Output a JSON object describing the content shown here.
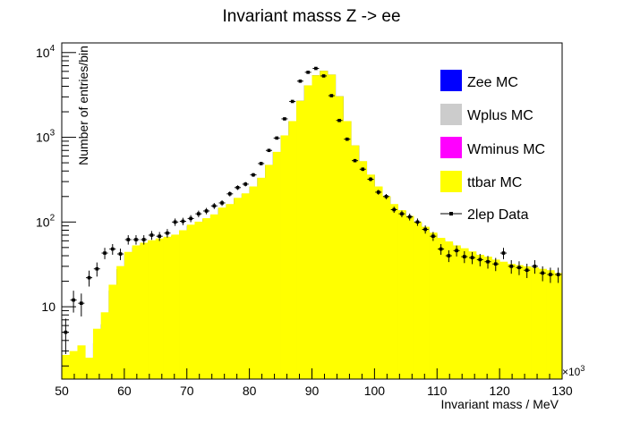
{
  "chart_data": {
    "type": "bar",
    "title": "Invariant masss Z -> ee",
    "xlabel": "Invariant mass / MeV",
    "ylabel": "Number of entries/bin",
    "x_multiplier": "×10",
    "x_multiplier_exp": "3",
    "xlim": [
      50000,
      130000
    ],
    "ylim_log": [
      1.4,
      13000
    ],
    "y_scale": "log",
    "bin_width": 1250,
    "x_ticks": [
      {
        "label": "50",
        "value": 50000
      },
      {
        "label": "60",
        "value": 60000
      },
      {
        "label": "70",
        "value": 70000
      },
      {
        "label": "80",
        "value": 80000
      },
      {
        "label": "90",
        "value": 90000
      },
      {
        "label": "100",
        "value": 100000
      },
      {
        "label": "110",
        "value": 110000
      },
      {
        "label": "120",
        "value": 120000
      },
      {
        "label": "130",
        "value": 130000
      }
    ],
    "y_ticks": [
      {
        "label": "10",
        "exp": "",
        "value": 10
      },
      {
        "label": "10",
        "exp": "2",
        "value": 100
      },
      {
        "label": "10",
        "exp": "3",
        "value": 1000
      },
      {
        "label": "10",
        "exp": "4",
        "value": 10000
      }
    ],
    "colors": {
      "zee": "#0000ff",
      "ttbar": "#ffff00",
      "wplus": "#cccccc",
      "wminus": "#ff00ff",
      "data": "#000000"
    },
    "series": [
      {
        "name": "Zee MC",
        "values": [
          0.4,
          0.6,
          0.9,
          0.8,
          3.7,
          6.2,
          15.5,
          27.8,
          42,
          50,
          54,
          58,
          61,
          64,
          68,
          77,
          90,
          98,
          108,
          120,
          145,
          160,
          190,
          215,
          260,
          330,
          470,
          670,
          1050,
          1550,
          2700,
          4100,
          5400,
          6100,
          5500,
          3050,
          1550,
          800,
          520,
          360,
          260,
          200,
          160,
          135,
          115,
          98,
          85,
          72,
          62,
          56,
          50,
          46,
          42,
          38,
          36,
          33,
          31,
          29,
          28,
          27,
          26,
          25,
          24,
          22
        ]
      },
      {
        "name": "Wplus MC",
        "values": []
      },
      {
        "name": "Wminus MC",
        "values": []
      },
      {
        "name": "ttbar MC",
        "values": [
          2.3,
          2.4,
          2.6,
          1.7,
          1.8,
          2.4,
          2.7,
          2.4,
          2.4,
          3,
          3,
          3,
          3,
          3,
          3,
          3,
          3,
          3,
          3,
          3,
          3,
          3,
          3,
          3,
          3,
          3,
          3,
          3,
          3,
          3,
          3,
          3,
          3,
          3,
          3,
          3,
          3,
          3,
          3,
          3,
          3,
          3,
          3,
          3,
          3,
          3,
          3,
          3,
          3,
          3,
          3,
          3,
          3,
          3,
          3,
          3,
          3,
          3,
          3,
          3,
          3,
          3,
          3,
          3
        ]
      },
      {
        "name": "2lep Data",
        "values": [
          5,
          12,
          11,
          22,
          28,
          43,
          48,
          42,
          62,
          62,
          62,
          70,
          68,
          74,
          100,
          102,
          110,
          125,
          135,
          155,
          168,
          215,
          255,
          280,
          360,
          490,
          700,
          980,
          1650,
          2650,
          4600,
          5850,
          6500,
          5300,
          3100,
          1580,
          950,
          530,
          420,
          320,
          225,
          200,
          140,
          125,
          115,
          100,
          82,
          68,
          48,
          40,
          46,
          39,
          38,
          36,
          34,
          32,
          43,
          30,
          29,
          27,
          30,
          25,
          24,
          24
        ]
      }
    ],
    "legend_position": "top-right",
    "grid": false
  }
}
